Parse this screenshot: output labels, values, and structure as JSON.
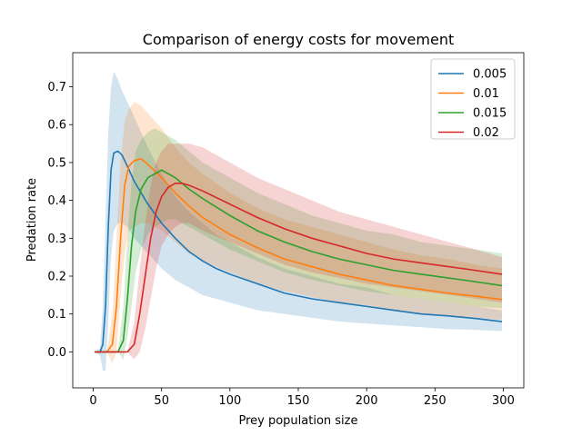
{
  "chart_data": {
    "type": "line",
    "title": "Comparison of energy costs for movement",
    "xlabel": "Prey population size",
    "ylabel": "Predation rate",
    "xlim": [
      -15,
      315
    ],
    "ylim": [
      -0.095,
      0.79
    ],
    "xticks": [
      0,
      50,
      100,
      150,
      200,
      250,
      300
    ],
    "yticks": [
      0.0,
      0.1,
      0.2,
      0.3,
      0.4,
      0.5,
      0.6,
      0.7
    ],
    "grid": false,
    "legend": "top-right",
    "series": [
      {
        "name": "0.005",
        "color": "#1f77b4",
        "x": [
          1,
          5,
          7,
          9,
          11,
          13,
          15,
          18,
          21,
          25,
          30,
          35,
          40,
          50,
          60,
          70,
          80,
          90,
          100,
          120,
          140,
          160,
          180,
          200,
          220,
          240,
          260,
          280,
          299
        ],
        "y": [
          0,
          0,
          0.02,
          0.12,
          0.33,
          0.48,
          0.525,
          0.53,
          0.52,
          0.49,
          0.45,
          0.42,
          0.39,
          0.34,
          0.3,
          0.265,
          0.24,
          0.22,
          0.205,
          0.18,
          0.155,
          0.14,
          0.13,
          0.12,
          0.11,
          0.1,
          0.095,
          0.088,
          0.08
        ],
        "upper": [
          0,
          0.01,
          0.12,
          0.35,
          0.58,
          0.7,
          0.74,
          0.72,
          0.69,
          0.66,
          0.62,
          0.58,
          0.54,
          0.47,
          0.41,
          0.37,
          0.34,
          0.31,
          0.29,
          0.25,
          0.22,
          0.2,
          0.18,
          0.17,
          0.15,
          0.14,
          0.13,
          0.12,
          0.11
        ],
        "lower": [
          0,
          -0.01,
          -0.05,
          -0.05,
          0.08,
          0.25,
          0.32,
          0.34,
          0.34,
          0.33,
          0.3,
          0.28,
          0.26,
          0.22,
          0.19,
          0.17,
          0.15,
          0.14,
          0.13,
          0.11,
          0.1,
          0.09,
          0.08,
          0.075,
          0.07,
          0.065,
          0.06,
          0.058,
          0.055
        ]
      },
      {
        "name": "0.01",
        "color": "#ff7f0e",
        "x": [
          1,
          10,
          14,
          17,
          20,
          23,
          26,
          30,
          35,
          40,
          50,
          60,
          70,
          80,
          100,
          120,
          140,
          160,
          180,
          200,
          220,
          240,
          260,
          280,
          299
        ],
        "y": [
          0,
          0,
          0.02,
          0.12,
          0.3,
          0.44,
          0.49,
          0.505,
          0.51,
          0.495,
          0.46,
          0.42,
          0.385,
          0.355,
          0.31,
          0.275,
          0.245,
          0.225,
          0.205,
          0.19,
          0.175,
          0.165,
          0.155,
          0.147,
          0.138
        ],
        "upper": [
          0,
          0,
          0.1,
          0.3,
          0.5,
          0.61,
          0.64,
          0.66,
          0.65,
          0.63,
          0.59,
          0.54,
          0.5,
          0.47,
          0.42,
          0.38,
          0.35,
          0.33,
          0.31,
          0.29,
          0.27,
          0.255,
          0.245,
          0.23,
          0.22
        ],
        "lower": [
          0,
          0,
          -0.03,
          0.0,
          0.15,
          0.26,
          0.32,
          0.33,
          0.34,
          0.34,
          0.32,
          0.29,
          0.26,
          0.24,
          0.21,
          0.18,
          0.16,
          0.145,
          0.13,
          0.12,
          0.11,
          0.1,
          0.095,
          0.09,
          0.085
        ]
      },
      {
        "name": "0.015",
        "color": "#2ca02c",
        "x": [
          1,
          18,
          22,
          25,
          28,
          31,
          35,
          40,
          45,
          50,
          55,
          60,
          70,
          80,
          100,
          120,
          140,
          160,
          180,
          200,
          220,
          240,
          260,
          280,
          299
        ],
        "y": [
          0,
          0,
          0.03,
          0.14,
          0.28,
          0.37,
          0.43,
          0.46,
          0.47,
          0.48,
          0.47,
          0.46,
          0.43,
          0.405,
          0.36,
          0.32,
          0.29,
          0.265,
          0.245,
          0.23,
          0.215,
          0.205,
          0.195,
          0.185,
          0.175
        ],
        "upper": [
          0,
          0,
          0.12,
          0.3,
          0.45,
          0.53,
          0.56,
          0.58,
          0.59,
          0.58,
          0.57,
          0.56,
          0.53,
          0.5,
          0.46,
          0.42,
          0.39,
          0.36,
          0.34,
          0.32,
          0.31,
          0.29,
          0.28,
          0.27,
          0.26
        ],
        "lower": [
          0,
          0,
          -0.02,
          0.04,
          0.12,
          0.21,
          0.27,
          0.31,
          0.33,
          0.34,
          0.35,
          0.35,
          0.33,
          0.31,
          0.27,
          0.24,
          0.21,
          0.19,
          0.175,
          0.16,
          0.15,
          0.14,
          0.13,
          0.12,
          0.115
        ]
      },
      {
        "name": "0.02",
        "color": "#d62728",
        "x": [
          1,
          25,
          30,
          34,
          38,
          42,
          46,
          50,
          55,
          60,
          65,
          70,
          80,
          100,
          120,
          140,
          160,
          180,
          200,
          220,
          240,
          260,
          280,
          299
        ],
        "y": [
          0,
          0,
          0.02,
          0.1,
          0.2,
          0.3,
          0.37,
          0.41,
          0.435,
          0.445,
          0.445,
          0.44,
          0.425,
          0.39,
          0.355,
          0.325,
          0.3,
          0.28,
          0.26,
          0.245,
          0.235,
          0.225,
          0.215,
          0.205
        ],
        "upper": [
          0,
          0,
          0.08,
          0.22,
          0.34,
          0.44,
          0.5,
          0.53,
          0.55,
          0.55,
          0.55,
          0.55,
          0.54,
          0.5,
          0.46,
          0.43,
          0.4,
          0.37,
          0.35,
          0.33,
          0.31,
          0.29,
          0.27,
          0.25
        ],
        "lower": [
          0,
          0,
          -0.02,
          0.0,
          0.06,
          0.14,
          0.22,
          0.28,
          0.31,
          0.33,
          0.34,
          0.34,
          0.32,
          0.29,
          0.26,
          0.23,
          0.21,
          0.195,
          0.18,
          0.17,
          0.16,
          0.15,
          0.14,
          0.13
        ]
      }
    ]
  }
}
